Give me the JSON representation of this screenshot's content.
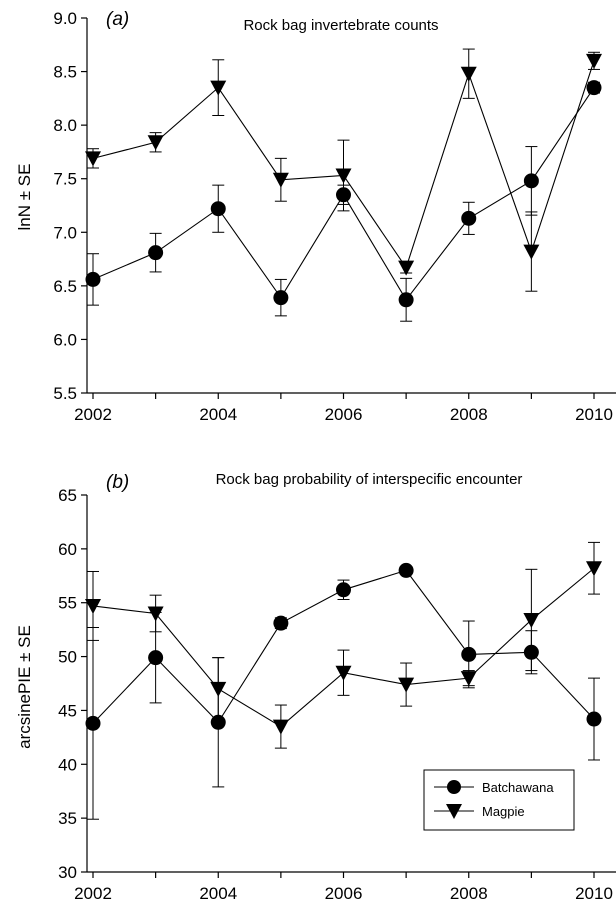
{
  "chart_data": [
    {
      "type": "line",
      "panel_label": "(a)",
      "title": "Rock bag invertebrate counts",
      "xlabel": "",
      "ylabel": "lnN ± SE",
      "xlim": [
        2002,
        2010
      ],
      "ylim": [
        5.5,
        9.0
      ],
      "x_ticks": [
        "2002",
        "2004",
        "2006",
        "2008",
        "2010"
      ],
      "y_ticks": [
        "5.5",
        "6.0",
        "6.5",
        "7.0",
        "7.5",
        "8.0",
        "8.5",
        "9.0"
      ],
      "grid": false,
      "x": [
        2002,
        2003,
        2004,
        2005,
        2006,
        2007,
        2008,
        2009,
        2010
      ],
      "series": [
        {
          "name": "Batchawana",
          "marker": "circle",
          "values": [
            6.56,
            6.81,
            7.22,
            6.39,
            7.35,
            6.37,
            7.13,
            7.48,
            8.35
          ],
          "se": [
            0.24,
            0.18,
            0.22,
            0.17,
            0.09,
            0.2,
            0.15,
            0.32,
            0.05
          ]
        },
        {
          "name": "Magpie",
          "marker": "triangle-down",
          "values": [
            7.69,
            7.84,
            8.35,
            7.49,
            7.53,
            6.67,
            8.48,
            6.82,
            8.6
          ],
          "se": [
            0.09,
            0.09,
            0.26,
            0.2,
            0.33,
            0.05,
            0.23,
            0.37,
            0.08
          ]
        }
      ]
    },
    {
      "type": "line",
      "panel_label": "(b)",
      "title": "Rock bag probability of interspecific encounter",
      "xlabel": "",
      "ylabel": "arcsinePIE ± SE",
      "xlim": [
        2002,
        2010
      ],
      "ylim": [
        30,
        65
      ],
      "x_ticks": [
        "2002",
        "2004",
        "2006",
        "2008",
        "2010"
      ],
      "y_ticks": [
        "30",
        "35",
        "40",
        "45",
        "50",
        "55",
        "60",
        "65"
      ],
      "grid": false,
      "legend": {
        "placement": "bottom-right"
      },
      "x": [
        2002,
        2003,
        2004,
        2005,
        2006,
        2007,
        2008,
        2009,
        2010
      ],
      "series": [
        {
          "name": "Batchawana",
          "marker": "circle",
          "values": [
            43.8,
            49.9,
            43.9,
            53.1,
            56.2,
            58.0,
            50.2,
            50.4,
            44.2
          ],
          "se": [
            8.9,
            4.2,
            6.0,
            0.5,
            0.9,
            0.0,
            3.1,
            2.0,
            3.8
          ]
        },
        {
          "name": "Magpie",
          "marker": "triangle-down",
          "values": [
            54.7,
            54.0,
            47.0,
            43.5,
            48.5,
            47.4,
            48.0,
            53.4,
            58.2
          ],
          "se": [
            3.2,
            1.7,
            2.9,
            2.0,
            2.1,
            2.0,
            0.7,
            4.7,
            2.4
          ]
        }
      ]
    }
  ]
}
